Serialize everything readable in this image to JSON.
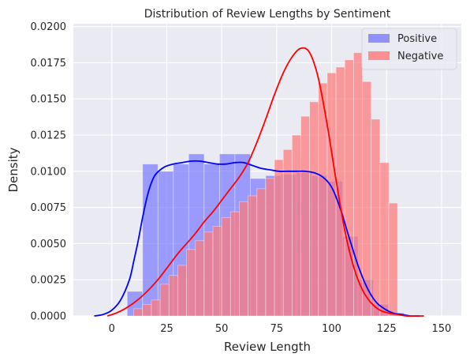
{
  "chart_data": {
    "type": "bar",
    "title": "Distribution of Review Lengths by Sentiment",
    "xlabel": "Review Length",
    "ylabel": "Density",
    "xlim": [
      -17.5,
      159
    ],
    "ylim": [
      0,
      0.0202
    ],
    "x_ticks": [
      0,
      25,
      50,
      75,
      100,
      125,
      150
    ],
    "y_ticks": [
      0.0,
      0.0025,
      0.005,
      0.0075,
      0.01,
      0.0125,
      0.015,
      0.0175,
      0.02
    ],
    "y_tick_labels": [
      "0.0000",
      "0.0025",
      "0.0050",
      "0.0075",
      "0.0100",
      "0.0125",
      "0.0150",
      "0.0175",
      "0.0200"
    ],
    "x_tick_labels": [
      "0",
      "25",
      "50",
      "75",
      "100",
      "125",
      "150"
    ],
    "grid": true,
    "legend_position": "top-right",
    "series": [
      {
        "name": "Positive",
        "kind": "histogram",
        "bins": [
          {
            "x0": 7,
            "x1": 14,
            "value": 0.0017
          },
          {
            "x0": 14,
            "x1": 21,
            "value": 0.0105
          },
          {
            "x0": 21,
            "x1": 28,
            "value": 0.01
          },
          {
            "x0": 28,
            "x1": 35,
            "value": 0.0105
          },
          {
            "x0": 35,
            "x1": 42,
            "value": 0.0112
          },
          {
            "x0": 42,
            "x1": 49,
            "value": 0.0105
          },
          {
            "x0": 49,
            "x1": 56,
            "value": 0.0112
          },
          {
            "x0": 56,
            "x1": 63,
            "value": 0.0112
          },
          {
            "x0": 63,
            "x1": 70,
            "value": 0.0095
          },
          {
            "x0": 70,
            "x1": 77,
            "value": 0.0097
          },
          {
            "x0": 77,
            "x1": 84,
            "value": 0.0098
          },
          {
            "x0": 84,
            "x1": 91,
            "value": 0.0099
          },
          {
            "x0": 91,
            "x1": 98,
            "value": 0.0097
          },
          {
            "x0": 98,
            "x1": 105,
            "value": 0.0093
          },
          {
            "x0": 105,
            "x1": 112,
            "value": 0.0055
          },
          {
            "x0": 112,
            "x1": 119,
            "value": 0.0025
          },
          {
            "x0": 119,
            "x1": 126,
            "value": 0.0008
          },
          {
            "x0": 126,
            "x1": 133,
            "value": 0.0002
          }
        ]
      },
      {
        "name": "Negative",
        "kind": "histogram",
        "bins": [
          {
            "x0": 10,
            "x1": 14,
            "value": 0.0005
          },
          {
            "x0": 14,
            "x1": 18,
            "value": 0.0008
          },
          {
            "x0": 18,
            "x1": 22,
            "value": 0.0011
          },
          {
            "x0": 22,
            "x1": 26,
            "value": 0.0022
          },
          {
            "x0": 26,
            "x1": 30,
            "value": 0.0028
          },
          {
            "x0": 30,
            "x1": 34,
            "value": 0.0035
          },
          {
            "x0": 34,
            "x1": 38,
            "value": 0.0046
          },
          {
            "x0": 38,
            "x1": 42,
            "value": 0.0052
          },
          {
            "x0": 42,
            "x1": 46,
            "value": 0.0058
          },
          {
            "x0": 46,
            "x1": 50,
            "value": 0.0062
          },
          {
            "x0": 50,
            "x1": 54,
            "value": 0.0068
          },
          {
            "x0": 54,
            "x1": 58,
            "value": 0.0072
          },
          {
            "x0": 58,
            "x1": 62,
            "value": 0.0079
          },
          {
            "x0": 62,
            "x1": 66,
            "value": 0.0083
          },
          {
            "x0": 66,
            "x1": 70,
            "value": 0.0088
          },
          {
            "x0": 70,
            "x1": 74,
            "value": 0.0095
          },
          {
            "x0": 74,
            "x1": 78,
            "value": 0.0108
          },
          {
            "x0": 78,
            "x1": 82,
            "value": 0.0115
          },
          {
            "x0": 82,
            "x1": 86,
            "value": 0.0125
          },
          {
            "x0": 86,
            "x1": 90,
            "value": 0.0138
          },
          {
            "x0": 90,
            "x1": 94,
            "value": 0.0148
          },
          {
            "x0": 94,
            "x1": 98,
            "value": 0.0161
          },
          {
            "x0": 98,
            "x1": 102,
            "value": 0.0168
          },
          {
            "x0": 102,
            "x1": 106,
            "value": 0.0172
          },
          {
            "x0": 106,
            "x1": 110,
            "value": 0.0177
          },
          {
            "x0": 110,
            "x1": 114,
            "value": 0.0182
          },
          {
            "x0": 114,
            "x1": 118,
            "value": 0.0162
          },
          {
            "x0": 118,
            "x1": 122,
            "value": 0.0136
          },
          {
            "x0": 122,
            "x1": 126,
            "value": 0.0106
          },
          {
            "x0": 126,
            "x1": 130,
            "value": 0.0078
          }
        ]
      },
      {
        "name": "Positive KDE",
        "kind": "kde",
        "x": [
          -8,
          -4,
          0,
          4,
          8,
          10,
          12,
          14,
          16,
          18,
          20,
          24,
          28,
          32,
          36,
          40,
          44,
          48,
          52,
          56,
          60,
          64,
          68,
          72,
          76,
          80,
          84,
          88,
          92,
          96,
          100,
          104,
          108,
          112,
          116,
          120,
          124,
          128,
          132,
          136,
          140
        ],
        "y": [
          0.0,
          0.0001,
          0.0004,
          0.0011,
          0.0025,
          0.0038,
          0.0052,
          0.0068,
          0.0082,
          0.0092,
          0.0098,
          0.0103,
          0.0105,
          0.0106,
          0.0107,
          0.0107,
          0.0106,
          0.0105,
          0.0105,
          0.0106,
          0.0106,
          0.0104,
          0.0102,
          0.0101,
          0.01,
          0.01,
          0.01,
          0.01,
          0.0099,
          0.0096,
          0.0089,
          0.0074,
          0.0054,
          0.0035,
          0.002,
          0.001,
          0.0005,
          0.0002,
          0.0001,
          0.0,
          0.0
        ]
      },
      {
        "name": "Negative KDE",
        "kind": "kde",
        "x": [
          -2,
          2,
          6,
          10,
          14,
          18,
          22,
          26,
          30,
          34,
          38,
          42,
          46,
          50,
          54,
          58,
          62,
          66,
          70,
          74,
          78,
          82,
          86,
          90,
          94,
          98,
          102,
          106,
          110,
          114,
          118,
          122,
          126,
          130,
          134,
          138,
          142
        ],
        "y": [
          0.0,
          0.0002,
          0.0005,
          0.0009,
          0.0014,
          0.002,
          0.0027,
          0.0035,
          0.0043,
          0.005,
          0.0057,
          0.0065,
          0.0072,
          0.008,
          0.0088,
          0.0096,
          0.0106,
          0.012,
          0.0136,
          0.0153,
          0.0168,
          0.0179,
          0.0185,
          0.0182,
          0.0164,
          0.0132,
          0.0094,
          0.0059,
          0.0034,
          0.0018,
          0.0009,
          0.0004,
          0.0002,
          0.0001,
          0.0,
          0.0,
          0.0
        ]
      }
    ],
    "colors": {
      "positive_fill": "#7b7bff",
      "negative_fill": "#ff7878",
      "positive_line": "#0000ff",
      "negative_line": "#ff0000",
      "plot_background": "#eaeaf2",
      "grid": "#ffffff"
    }
  }
}
